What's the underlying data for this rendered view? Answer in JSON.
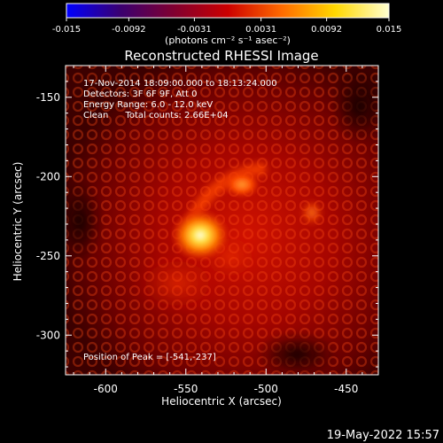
{
  "colorbar": {
    "tick_labels": [
      "-0.015",
      "-0.0092",
      "-0.0031",
      "0.0031",
      "0.0092",
      "0.015"
    ],
    "tick_values": [
      -0.015,
      -0.0092,
      -0.0031,
      0.0031,
      0.0092,
      0.015
    ],
    "range": [
      -0.015,
      0.015
    ],
    "units": "(photons cm⁻² s⁻¹ asec⁻²)",
    "colors": [
      "#0000ff",
      "#3a0070",
      "#800030",
      "#cc0000",
      "#ff6a00",
      "#ffd800",
      "#ffffd0"
    ]
  },
  "image": {
    "title": "Reconstructed RHESSI Image",
    "info_lines": [
      "17-Nov-2014 18:09:00.000 to 18:13:24.000",
      "Detectors: 3F 6F 9F, Att 0",
      "Energy Range: 6.0 - 12.0 keV",
      "Clean      Total counts: 2.66E+04"
    ],
    "peak_label": "Position of Peak = [-541,-237]",
    "x_axis": {
      "label": "Heliocentric X (arcsec)",
      "range": [
        -625,
        -430
      ],
      "tick_labels": [
        "-600",
        "-550",
        "-500",
        "-450"
      ],
      "tick_values": [
        -600,
        -550,
        -500,
        -450
      ]
    },
    "y_axis": {
      "label": "Heliocentric Y (arcsec)",
      "range": [
        -325,
        -130
      ],
      "tick_labels": [
        "-150",
        "-200",
        "-250",
        "-300"
      ],
      "tick_values": [
        -150,
        -200,
        -250,
        -300
      ]
    },
    "peak_position": [
      -541,
      -237
    ],
    "secondary_source": [
      -515,
      -205
    ]
  },
  "timestamp": "19-May-2022 15:57"
}
